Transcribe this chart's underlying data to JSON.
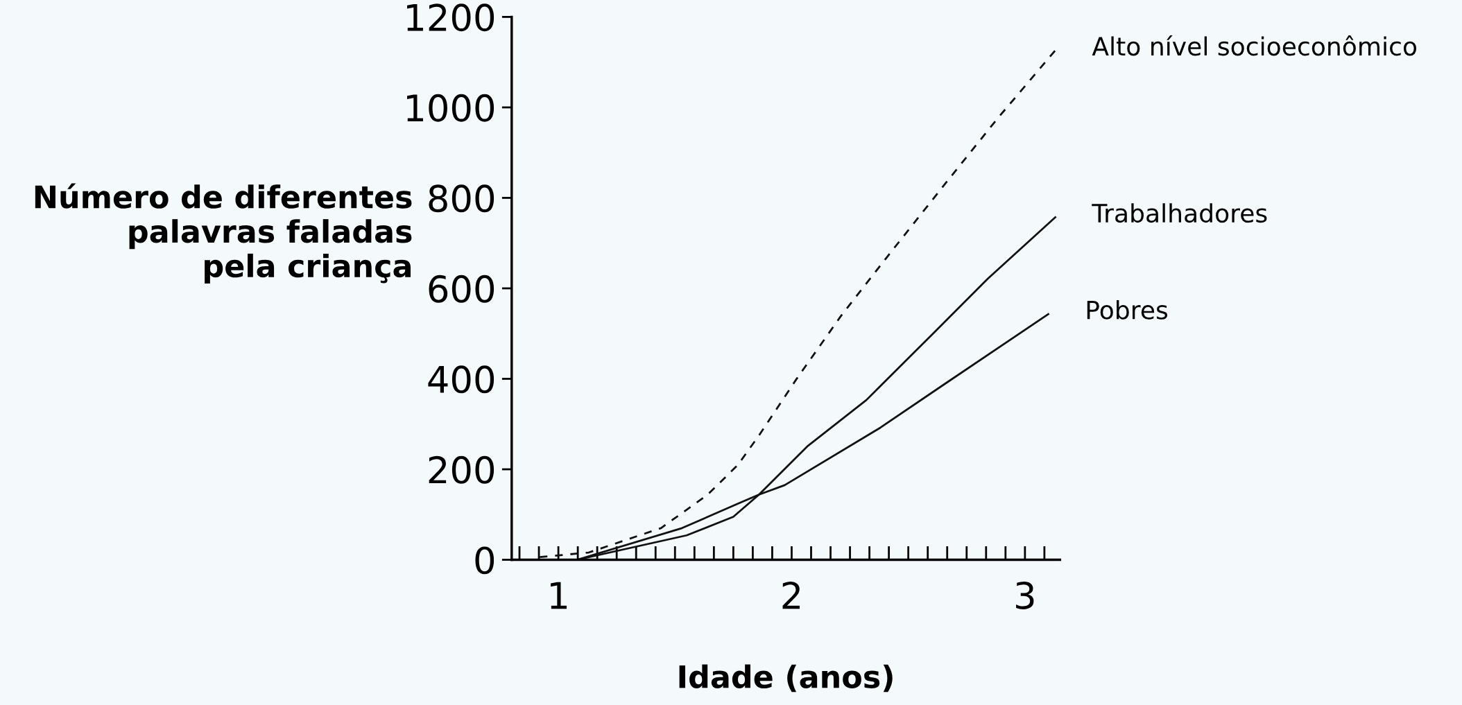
{
  "chart_data": {
    "type": "line",
    "xlabel": "Idade (anos)",
    "ylabel": "Número de diferentes\npalavras faladas\npela criança",
    "xlim": [
      0.8,
      3.15
    ],
    "ylim": [
      0,
      1200
    ],
    "xticks": [
      1,
      2,
      3
    ],
    "yticks": [
      0,
      200,
      400,
      600,
      800,
      1000,
      1200
    ],
    "grid": false,
    "legend": false,
    "marker": "none",
    "series": [
      {
        "name": "Alto nível socioeconômico",
        "color": "#111111",
        "line_style": "dashed",
        "x": [
          0.92,
          1.13,
          1.44,
          1.64,
          1.77,
          1.86,
          2.02,
          2.21,
          2.41,
          2.65,
          2.88,
          3.13
        ],
        "values": [
          6,
          16,
          70,
          144,
          210,
          275,
          399,
          538,
          670,
          826,
          974,
          1126
        ]
      },
      {
        "name": "Trabalhadores",
        "color": "#111111",
        "line_style": "solid",
        "x": [
          1.08,
          1.55,
          1.75,
          1.86,
          2.07,
          2.32,
          2.6,
          2.84,
          3.13
        ],
        "values": [
          0,
          54,
          95,
          144,
          252,
          353,
          497,
          621,
          757
        ]
      },
      {
        "name": "Pobres",
        "color": "#111111",
        "line_style": "solid",
        "x": [
          1.08,
          1.53,
          1.77,
          1.86,
          1.97,
          2.38,
          2.66,
          3.1
        ],
        "values": [
          0,
          70,
          124,
          144,
          165,
          292,
          390,
          543
        ]
      }
    ]
  }
}
